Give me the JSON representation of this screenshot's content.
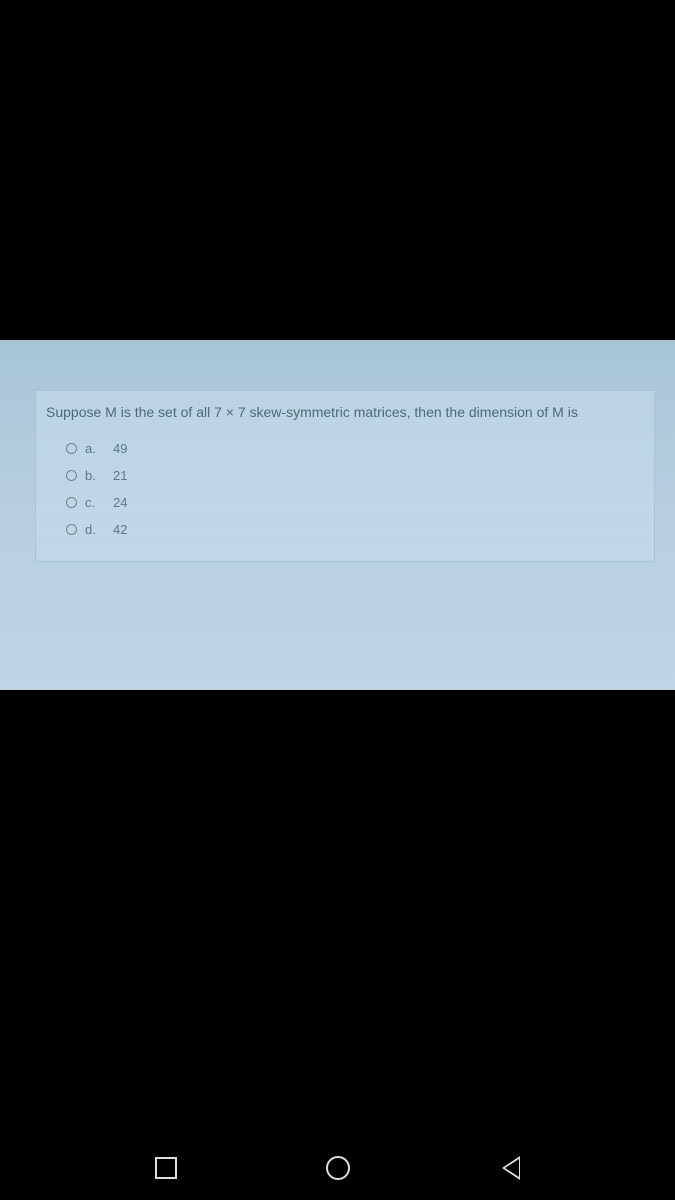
{
  "question": {
    "text": "Suppose M is the set of all 7 × 7 skew-symmetric matrices, then the dimension of M is",
    "options": [
      {
        "letter": "a.",
        "value": "49"
      },
      {
        "letter": "b.",
        "value": "21"
      },
      {
        "letter": "c.",
        "value": "24"
      },
      {
        "letter": "d.",
        "value": "42"
      }
    ]
  },
  "colors": {
    "screen_bg_top": "#a8c5d8",
    "screen_bg_bottom": "#c0d5e5",
    "text_color": "#4a6b7a",
    "option_color": "#5a7885",
    "nav_icon_color": "#dddddd"
  }
}
